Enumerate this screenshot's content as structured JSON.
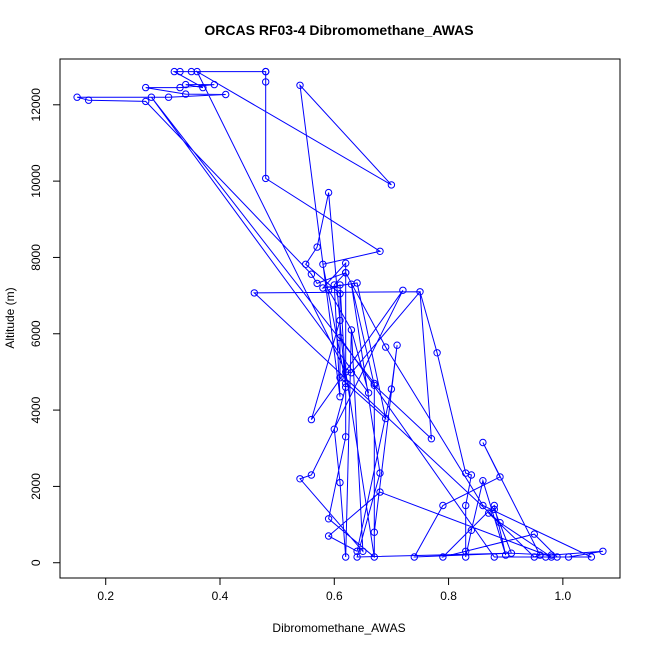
{
  "chart_data": {
    "type": "line",
    "title": "ORCAS RF03-4 Dibromomethane_AWAS",
    "xlabel": "Dibromomethane_AWAS",
    "ylabel": "Altitude (m)",
    "xlim": [
      0.12,
      1.1
    ],
    "ylim": [
      -400,
      13200
    ],
    "xticks": [
      0.2,
      0.4,
      0.6,
      0.8,
      1.0
    ],
    "xtick_labels": [
      "0.2",
      "0.4",
      "0.6",
      "0.8",
      "1.0"
    ],
    "yticks": [
      0,
      2000,
      4000,
      6000,
      8000,
      10000,
      12000
    ],
    "ytick_labels": [
      "0",
      "2000",
      "4000",
      "6000",
      "8000",
      "10000",
      "12000"
    ],
    "grid": false,
    "series": [
      {
        "name": "Dibromomethane_AWAS",
        "color": "#0000ff",
        "marker": "open-circle",
        "points": [
          [
            0.48,
            12870
          ],
          [
            0.32,
            12870
          ],
          [
            0.33,
            12870
          ],
          [
            0.35,
            12870
          ],
          [
            0.36,
            12870
          ],
          [
            0.48,
            12870
          ],
          [
            0.34,
            12530
          ],
          [
            0.39,
            12530
          ],
          [
            0.27,
            12450
          ],
          [
            0.33,
            12450
          ],
          [
            0.37,
            12450
          ],
          [
            0.34,
            12280
          ],
          [
            0.41,
            12270
          ],
          [
            0.15,
            12200
          ],
          [
            0.28,
            12200
          ],
          [
            0.31,
            12200
          ],
          [
            0.17,
            12120
          ],
          [
            0.27,
            12090
          ],
          [
            0.7,
            9900
          ],
          [
            0.48,
            12600
          ],
          [
            0.58,
            7820
          ],
          [
            0.48,
            10070
          ],
          [
            0.54,
            12510
          ],
          [
            0.61,
            4350
          ],
          [
            0.59,
            9700
          ],
          [
            0.62,
            7600
          ],
          [
            0.61,
            2100
          ],
          [
            0.66,
            4450
          ],
          [
            0.68,
            8160
          ],
          [
            0.57,
            8270
          ],
          [
            0.57,
            7320
          ],
          [
            0.58,
            7200
          ],
          [
            0.59,
            7150
          ],
          [
            0.6,
            7280
          ],
          [
            0.61,
            7280
          ],
          [
            0.62,
            7600
          ],
          [
            0.62,
            7850
          ],
          [
            0.56,
            7560
          ],
          [
            0.55,
            7820
          ],
          [
            0.63,
            7300
          ],
          [
            0.64,
            7330
          ],
          [
            0.46,
            7070
          ],
          [
            0.72,
            7140
          ],
          [
            0.75,
            7100
          ],
          [
            0.78,
            5500
          ],
          [
            0.61,
            7050
          ],
          [
            0.61,
            6350
          ],
          [
            0.61,
            5900
          ],
          [
            0.62,
            5000
          ],
          [
            0.61,
            4850
          ],
          [
            0.62,
            4700
          ],
          [
            0.62,
            4600
          ],
          [
            0.63,
            6100
          ],
          [
            0.69,
            5650
          ],
          [
            0.71,
            5700
          ],
          [
            0.7,
            4550
          ],
          [
            0.67,
            4700
          ],
          [
            0.67,
            4650
          ],
          [
            0.63,
            4980
          ],
          [
            0.69,
            3780
          ],
          [
            0.56,
            3750
          ],
          [
            0.6,
            3500
          ],
          [
            0.62,
            3300
          ],
          [
            0.77,
            3250
          ],
          [
            0.86,
            3150
          ],
          [
            0.89,
            2250
          ],
          [
            0.83,
            2350
          ],
          [
            0.84,
            2300
          ],
          [
            0.86,
            2150
          ],
          [
            0.54,
            2200
          ],
          [
            0.56,
            2300
          ],
          [
            0.68,
            2350
          ],
          [
            0.68,
            1850
          ],
          [
            0.79,
            1500
          ],
          [
            0.83,
            1500
          ],
          [
            0.86,
            1500
          ],
          [
            0.88,
            1500
          ],
          [
            0.88,
            1400
          ],
          [
            0.87,
            1300
          ],
          [
            0.89,
            1050
          ],
          [
            0.84,
            850
          ],
          [
            0.59,
            1150
          ],
          [
            0.59,
            700
          ],
          [
            0.67,
            800
          ],
          [
            0.95,
            750
          ],
          [
            0.64,
            300
          ],
          [
            0.62,
            150
          ],
          [
            0.64,
            150
          ],
          [
            0.65,
            300
          ],
          [
            0.67,
            150
          ],
          [
            0.74,
            150
          ],
          [
            0.79,
            150
          ],
          [
            0.83,
            150
          ],
          [
            0.83,
            300
          ],
          [
            0.88,
            150
          ],
          [
            0.9,
            200
          ],
          [
            0.91,
            250
          ],
          [
            0.95,
            150
          ],
          [
            0.96,
            200
          ],
          [
            0.97,
            150
          ],
          [
            0.98,
            150
          ],
          [
            0.98,
            200
          ],
          [
            0.99,
            150
          ],
          [
            1.01,
            150
          ],
          [
            1.05,
            150
          ],
          [
            1.07,
            300
          ]
        ],
        "path": [
          [
            0.7,
            9900
          ],
          [
            0.54,
            12510
          ],
          [
            0.61,
            4350
          ],
          [
            0.6,
            7280
          ],
          [
            0.62,
            7600
          ],
          [
            0.62,
            5000
          ],
          [
            0.63,
            4980
          ],
          [
            0.75,
            7100
          ],
          [
            0.46,
            7070
          ],
          [
            0.89,
            1050
          ],
          [
            0.98,
            150
          ],
          [
            0.68,
            1850
          ],
          [
            0.59,
            700
          ],
          [
            0.64,
            300
          ],
          [
            0.7,
            4550
          ],
          [
            0.71,
            5700
          ],
          [
            0.67,
            800
          ],
          [
            0.67,
            150
          ],
          [
            0.59,
            1150
          ],
          [
            0.62,
            3300
          ],
          [
            0.62,
            7850
          ],
          [
            0.58,
            7200
          ],
          [
            0.64,
            7330
          ],
          [
            0.69,
            3780
          ],
          [
            0.61,
            4850
          ],
          [
            0.61,
            7050
          ],
          [
            0.55,
            7820
          ],
          [
            0.57,
            8270
          ],
          [
            0.59,
            9700
          ],
          [
            0.62,
            4600
          ],
          [
            0.6,
            3500
          ],
          [
            0.61,
            2100
          ],
          [
            0.62,
            150
          ],
          [
            0.63,
            6100
          ],
          [
            0.65,
            300
          ],
          [
            0.54,
            2200
          ],
          [
            0.56,
            2300
          ],
          [
            0.72,
            7140
          ],
          [
            0.56,
            3750
          ],
          [
            0.61,
            6350
          ],
          [
            0.61,
            5900
          ],
          [
            0.88,
            150
          ],
          [
            0.97,
            150
          ],
          [
            0.99,
            150
          ],
          [
            0.95,
            750
          ],
          [
            0.79,
            150
          ],
          [
            0.88,
            1500
          ],
          [
            0.9,
            200
          ],
          [
            0.86,
            2150
          ],
          [
            0.84,
            850
          ],
          [
            0.83,
            150
          ],
          [
            0.83,
            1500
          ],
          [
            0.84,
            2300
          ],
          [
            0.83,
            2350
          ],
          [
            0.78,
            5500
          ],
          [
            0.75,
            7100
          ],
          [
            0.77,
            3250
          ],
          [
            0.67,
            4650
          ],
          [
            0.63,
            7300
          ],
          [
            0.68,
            2350
          ],
          [
            0.64,
            150
          ],
          [
            0.91,
            250
          ],
          [
            0.74,
            150
          ],
          [
            0.79,
            1500
          ],
          [
            0.89,
            2250
          ],
          [
            0.86,
            3150
          ],
          [
            0.96,
            200
          ],
          [
            0.95,
            150
          ],
          [
            1.01,
            150
          ],
          [
            1.07,
            300
          ],
          [
            0.98,
            200
          ],
          [
            0.91,
            250
          ],
          [
            0.88,
            1400
          ],
          [
            0.87,
            1300
          ],
          [
            0.95,
            150
          ],
          [
            1.05,
            150
          ],
          [
            0.86,
            1500
          ],
          [
            0.69,
            5650
          ],
          [
            0.62,
            7600
          ],
          [
            0.57,
            7320
          ],
          [
            0.56,
            7560
          ],
          [
            0.27,
            12090
          ],
          [
            0.17,
            12120
          ],
          [
            0.15,
            12200
          ],
          [
            0.28,
            12200
          ],
          [
            0.31,
            12200
          ],
          [
            0.41,
            12270
          ],
          [
            0.34,
            12280
          ],
          [
            0.27,
            12450
          ],
          [
            0.33,
            12450
          ],
          [
            0.39,
            12530
          ],
          [
            0.34,
            12530
          ],
          [
            0.37,
            12450
          ],
          [
            0.32,
            12870
          ],
          [
            0.33,
            12870
          ],
          [
            0.35,
            12870
          ],
          [
            0.36,
            12870
          ],
          [
            0.48,
            12870
          ],
          [
            0.48,
            12870
          ],
          [
            0.48,
            12600
          ],
          [
            0.48,
            10070
          ],
          [
            0.68,
            8160
          ],
          [
            0.58,
            7820
          ],
          [
            0.62,
            4700
          ],
          [
            0.61,
            7280
          ],
          [
            0.59,
            7150
          ],
          [
            0.63,
            6100
          ],
          [
            0.66,
            4450
          ],
          [
            0.28,
            12200
          ],
          [
            0.67,
            4700
          ],
          [
            0.67,
            150
          ],
          [
            0.62,
            5000
          ],
          [
            0.36,
            12870
          ],
          [
            0.7,
            9900
          ]
        ]
      }
    ]
  }
}
